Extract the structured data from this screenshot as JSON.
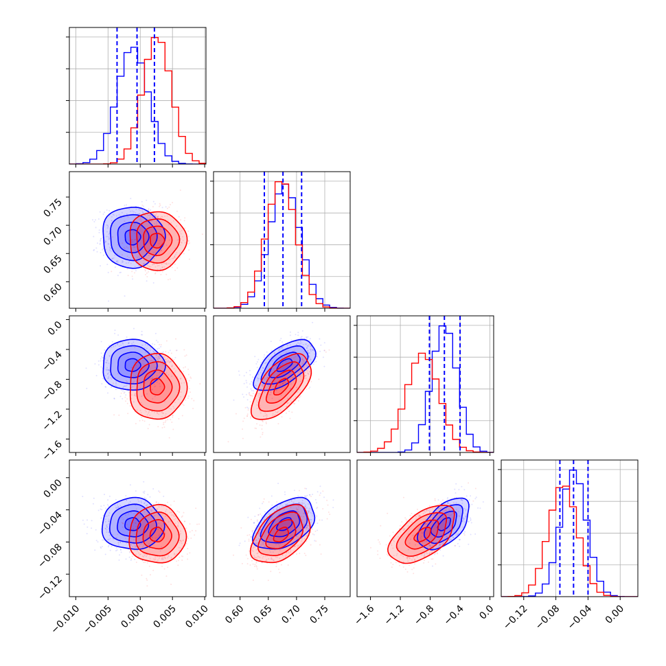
{
  "chart_data": {
    "type": "corner",
    "parameters": [
      {
        "ticks": [
          -0.01,
          -0.005,
          0.0,
          0.005,
          0.01
        ],
        "tick_labels": [
          "−0.010",
          "−0.005",
          "0.000",
          "0.005",
          "0.010"
        ],
        "range": [
          -0.011,
          0.0102
        ]
      },
      {
        "ticks": [
          0.6,
          0.65,
          0.7,
          0.75
        ],
        "tick_labels": [
          "0.60",
          "0.65",
          "0.70",
          "0.75"
        ],
        "range": [
          0.553,
          0.795
        ]
      },
      {
        "ticks": [
          -1.6,
          -1.2,
          -0.8,
          -0.4,
          0.0
        ],
        "tick_labels": [
          "−1.6",
          "−1.2",
          "−0.8",
          "−0.4",
          "0.0"
        ],
        "range": [
          -1.78,
          0.05
        ]
      },
      {
        "ticks": [
          -0.12,
          -0.08,
          -0.04,
          0.0
        ],
        "tick_labels": [
          "−0.12",
          "−0.08",
          "−0.04",
          "0.00"
        ],
        "range": [
          -0.148,
          0.022
        ]
      }
    ],
    "series": [
      {
        "color": "#0000ff",
        "mean": [
          -0.0012,
          0.679,
          -0.61,
          -0.058
        ],
        "sd": [
          0.0024,
          0.027,
          0.17,
          0.016
        ],
        "quantiles": [
          [
            -0.0036,
            -0.0005,
            0.0022
          ],
          [
            0.643,
            0.676,
            0.709
          ],
          [
            -0.81,
            -0.61,
            -0.4
          ],
          [
            -0.075,
            -0.058,
            -0.04
          ]
        ]
      },
      {
        "color": "#ff0000",
        "mean": [
          0.0026,
          0.673,
          -0.9,
          -0.071
        ],
        "sd": [
          0.0022,
          0.026,
          0.22,
          0.018
        ],
        "quantiles": []
      }
    ],
    "correlations": [
      [
        1,
        0,
        0,
        0
      ],
      [
        0,
        1,
        0.6,
        0.45
      ],
      [
        0,
        0.6,
        1,
        0.55
      ],
      [
        0,
        0.45,
        0.55,
        1
      ]
    ],
    "quantile_line_series": 0,
    "histogram_bins": 20,
    "contour_levels_sigma": [
      0.5,
      1.0,
      1.5,
      2.0
    ],
    "grid": true,
    "title": "",
    "legend": "none"
  }
}
